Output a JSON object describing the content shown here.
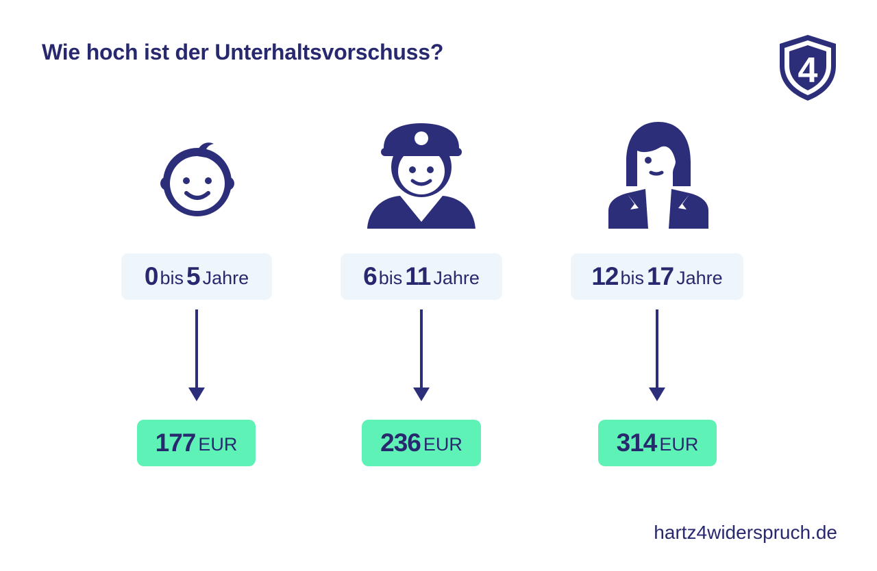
{
  "title": "Wie hoch ist der Unterhaltsvorschuss?",
  "footer": "hartz4widerspruch.de",
  "colors": {
    "primary": "#28286e",
    "age_box": "#eef6fc",
    "amount_box": "#5ff2b6"
  },
  "logo": {
    "icon": "shield-4-logo",
    "label": "4"
  },
  "groups": [
    {
      "icon": "baby-icon",
      "from": "0",
      "bis": "bis",
      "to": "5",
      "unit": "Jahre",
      "amount": "177",
      "currency": "EUR"
    },
    {
      "icon": "child-cap-icon",
      "from": "6",
      "bis": "bis",
      "to": "11",
      "unit": "Jahre",
      "amount": "236",
      "currency": "EUR"
    },
    {
      "icon": "teen-icon",
      "from": "12",
      "bis": "bis",
      "to": "17",
      "unit": "Jahre",
      "amount": "314",
      "currency": "EUR"
    }
  ]
}
